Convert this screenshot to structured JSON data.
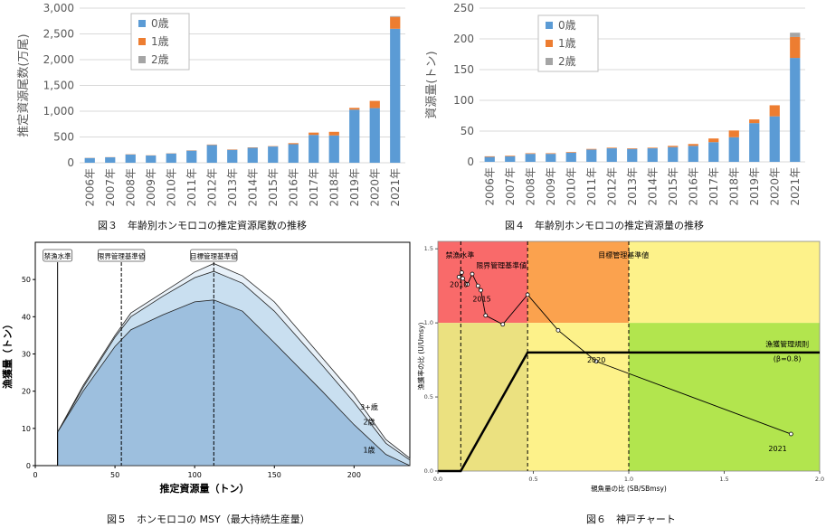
{
  "chart_data": [
    {
      "id": "fig3",
      "type": "bar",
      "stacked": true,
      "categories": [
        "2006年",
        "2007年",
        "2008年",
        "2009年",
        "2010年",
        "2011年",
        "2012年",
        "2013年",
        "2014年",
        "2015年",
        "2016年",
        "2017年",
        "2018年",
        "2019年",
        "2020年",
        "2021年"
      ],
      "series": [
        {
          "name": "0歳",
          "color": "#5b9bd5",
          "values": [
            92,
            105,
            160,
            140,
            180,
            235,
            345,
            250,
            290,
            315,
            360,
            540,
            530,
            1030,
            1060,
            2600
          ]
        },
        {
          "name": "1歳",
          "color": "#ed7d31",
          "values": [
            3,
            3,
            5,
            4,
            4,
            5,
            8,
            8,
            8,
            7,
            20,
            45,
            70,
            35,
            140,
            230
          ]
        },
        {
          "name": "2歳",
          "color": "#a5a5a5",
          "values": [
            0,
            0,
            0,
            0,
            0,
            0,
            0,
            0,
            0,
            0,
            0,
            0,
            0,
            0,
            0,
            15
          ]
        }
      ],
      "ylabel": "推定資源尾数(万尾)",
      "ylim": [
        0,
        3000
      ],
      "yticks": [
        0,
        500,
        1000,
        1500,
        2000,
        2500,
        3000
      ],
      "ytick_labels": [
        "0",
        "500",
        "1,000",
        "1,500",
        "2,000",
        "2,500",
        "3,000"
      ],
      "legend_position": "top-left",
      "caption": "図３　年齢別ホンモロコの推定資源尾数の推移"
    },
    {
      "id": "fig4",
      "type": "bar",
      "stacked": true,
      "categories": [
        "2006年",
        "2007年",
        "2008年",
        "2009年",
        "2010年",
        "2011年",
        "2012年",
        "2013年",
        "2014年",
        "2015年",
        "2016年",
        "2017年",
        "2018年",
        "2019年",
        "2020年",
        "2021年"
      ],
      "series": [
        {
          "name": "0歳",
          "color": "#5b9bd5",
          "values": [
            8,
            9,
            13,
            13,
            15,
            20,
            22,
            21,
            22,
            24,
            26,
            32,
            40,
            63,
            74,
            169
          ]
        },
        {
          "name": "1歳",
          "color": "#ed7d31",
          "values": [
            1,
            1,
            1,
            1,
            1,
            1,
            1,
            1,
            1,
            2,
            3,
            6,
            11,
            6,
            18,
            34
          ]
        },
        {
          "name": "2歳",
          "color": "#a5a5a5",
          "values": [
            0,
            0,
            0,
            0,
            0,
            0,
            0,
            0,
            0,
            0,
            0,
            0,
            0,
            0,
            0,
            7
          ]
        }
      ],
      "ylabel": "資源量(トン)",
      "ylim": [
        0,
        250
      ],
      "yticks": [
        0,
        50,
        100,
        150,
        200,
        250
      ],
      "ytick_labels": [
        "0",
        "50",
        "100",
        "150",
        "200",
        "250"
      ],
      "legend_position": "top-left",
      "caption": "図４　年齢別ホンモロコの推定資源量の推移"
    },
    {
      "id": "fig5",
      "type": "area",
      "xlabel": "推定資源量（トン）",
      "ylabel": "漁獲量（トン）",
      "xlim": [
        0,
        235
      ],
      "ylim": [
        0,
        60
      ],
      "xticks": [
        0,
        50,
        100,
        150,
        200
      ],
      "yticks": [
        0,
        10,
        20,
        30,
        40,
        50
      ],
      "x": [
        14,
        30,
        50,
        60,
        80,
        100,
        112,
        130,
        150,
        180,
        200,
        220,
        235
      ],
      "series": [
        {
          "name": "1歳",
          "color": "#9dbfde",
          "values": [
            9,
            20,
            32,
            36.5,
            40.5,
            44,
            44.5,
            41.5,
            33,
            20,
            11,
            3,
            0
          ]
        },
        {
          "name": "2歳",
          "color": "#c9dff0",
          "values": [
            9,
            21,
            34.5,
            40,
            45.5,
            50.5,
            52.2,
            49,
            41.5,
            27,
            17,
            6,
            1.5
          ]
        },
        {
          "name": "3+歳",
          "color": "#e8f1f9",
          "values": [
            9,
            21.5,
            35,
            41,
            46.5,
            52,
            54.3,
            51,
            44,
            29,
            19,
            7,
            2
          ]
        }
      ],
      "area_labels": [
        "3+歳",
        "2歳",
        "1歳"
      ],
      "reference_lines": [
        {
          "label": "禁漁水準",
          "x": 14
        },
        {
          "label": "限界管理基準値",
          "x": 54
        },
        {
          "label": "目標管理基準値",
          "x": 112
        }
      ],
      "caption": "図５　ホンモロコの MSY（最大持続生産量）"
    },
    {
      "id": "fig6",
      "type": "line",
      "xlabel": "親魚量の比 (SB/SBmsy)",
      "ylabel": "漁獲率の比 (U/Umsy)",
      "xlim": [
        0,
        2
      ],
      "ylim": [
        0,
        1.55
      ],
      "xticks": [
        0.0,
        0.5,
        1.0,
        1.5,
        2.0
      ],
      "xtick_labels": [
        "0.0",
        "0.5",
        "1.0",
        "1.5",
        "2.0"
      ],
      "yticks": [
        0.0,
        0.5,
        1.0,
        1.5
      ],
      "ytick_labels": [
        "0.0",
        "0.5",
        "1.0",
        "1.5"
      ],
      "zones": [
        {
          "x": [
            0,
            0.47
          ],
          "y": [
            1.0,
            1.55
          ],
          "color": "#f96a6a"
        },
        {
          "x": [
            0.47,
            1.0
          ],
          "y": [
            1.0,
            1.55
          ],
          "color": "#fba24e"
        },
        {
          "x": [
            1.0,
            2.0
          ],
          "y": [
            1.0,
            1.55
          ],
          "color": "#fdf28a"
        },
        {
          "x": [
            0,
            0.47
          ],
          "y": [
            0,
            1.0
          ],
          "color": "#ebe180"
        },
        {
          "x": [
            0.47,
            1.0
          ],
          "y": [
            0,
            1.0
          ],
          "color": "#fdf28a"
        },
        {
          "x": [
            1.0,
            2.0
          ],
          "y": [
            0,
            1.0
          ],
          "color": "#b2e54e"
        }
      ],
      "trajectory": {
        "x": [
          0.11,
          0.125,
          0.13,
          0.155,
          0.18,
          0.21,
          0.225,
          0.25,
          0.34,
          0.47,
          0.63,
          0.83,
          1.85
        ],
        "y": [
          1.31,
          1.34,
          1.3,
          1.26,
          1.33,
          1.25,
          1.22,
          1.05,
          0.99,
          1.19,
          0.95,
          0.74,
          0.25
        ]
      },
      "point_labels": [
        {
          "text": "2010",
          "x": 0.11,
          "y": 1.31
        },
        {
          "text": "2015",
          "x": 0.23,
          "y": 1.21
        },
        {
          "text": "2020",
          "x": 0.83,
          "y": 0.8
        },
        {
          "text": "2021",
          "x": 1.78,
          "y": 0.2
        }
      ],
      "hcr": {
        "x": [
          0,
          0.12,
          0.47,
          2.0
        ],
        "y": [
          0,
          0,
          0.8,
          0.8
        ]
      },
      "ref_lines": [
        {
          "x": 0.12
        },
        {
          "x": 0.47
        },
        {
          "x": 1.0
        }
      ],
      "zone_labels": [
        {
          "text": "禁漁水準",
          "x": 0.04,
          "y": 1.44
        },
        {
          "text": "限界管理基準値",
          "x": 0.2,
          "y": 1.37
        },
        {
          "text": "目標管理基準値",
          "x": 0.84,
          "y": 1.44
        }
      ],
      "hcr_label": "漁獲管理規則",
      "hcr_sublabel": "(β=0.8)",
      "caption": "図６　神戸チャート"
    }
  ]
}
